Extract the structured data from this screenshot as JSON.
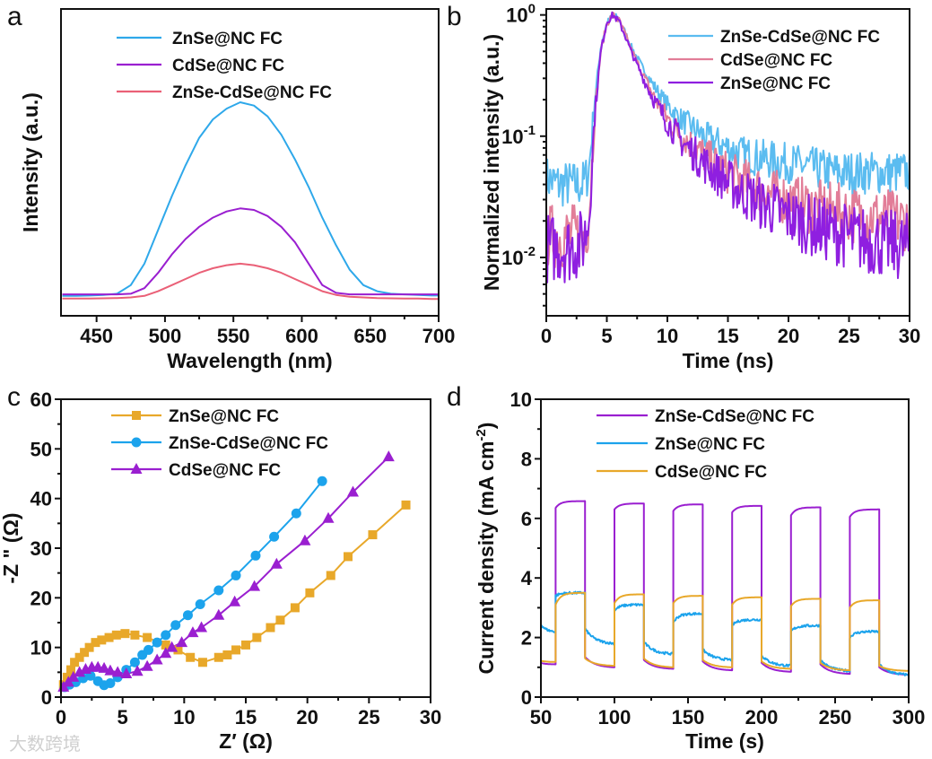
{
  "watermark": "大数跨境",
  "chart_data": [
    {
      "panel": "a",
      "type": "line",
      "xlabel": "Wavelength (nm)",
      "ylabel": "Intensity (a.u.)",
      "xlim": [
        424,
        700
      ],
      "ylim": [
        0,
        1
      ],
      "xticks": [
        450,
        500,
        550,
        600,
        650,
        700
      ],
      "yticks": [],
      "legend": "top-center",
      "x": [
        425,
        435,
        445,
        455,
        465,
        475,
        485,
        495,
        505,
        515,
        525,
        535,
        545,
        555,
        565,
        575,
        585,
        595,
        605,
        615,
        625,
        635,
        645,
        655,
        665,
        675,
        685,
        695,
        700
      ],
      "series": [
        {
          "name": "ZnSe@NC FC",
          "color": "#2ea8ea",
          "values": [
            0.065,
            0.065,
            0.066,
            0.068,
            0.072,
            0.1,
            0.17,
            0.28,
            0.39,
            0.49,
            0.58,
            0.64,
            0.675,
            0.696,
            0.685,
            0.65,
            0.59,
            0.51,
            0.42,
            0.32,
            0.23,
            0.15,
            0.1,
            0.08,
            0.072,
            0.07,
            0.068,
            0.066,
            0.066
          ]
        },
        {
          "name": "CdSe@NC FC",
          "color": "#9a1fd0",
          "values": [
            0.07,
            0.07,
            0.07,
            0.07,
            0.07,
            0.072,
            0.09,
            0.14,
            0.2,
            0.25,
            0.29,
            0.32,
            0.34,
            0.35,
            0.345,
            0.325,
            0.29,
            0.24,
            0.17,
            0.1,
            0.075,
            0.07,
            0.07,
            0.07,
            0.07,
            0.07,
            0.07,
            0.07,
            0.07
          ]
        },
        {
          "name": "ZnSe-CdSe@NC FC",
          "color": "#ea6077",
          "values": [
            0.056,
            0.056,
            0.056,
            0.057,
            0.058,
            0.06,
            0.065,
            0.08,
            0.1,
            0.12,
            0.14,
            0.155,
            0.165,
            0.17,
            0.165,
            0.155,
            0.14,
            0.12,
            0.1,
            0.08,
            0.068,
            0.062,
            0.06,
            0.058,
            0.057,
            0.056,
            0.056,
            0.055,
            0.055
          ]
        }
      ]
    },
    {
      "panel": "b",
      "type": "line",
      "yscale": "log",
      "xlabel": "Time (ns)",
      "ylabel": "Normalized intensity (a.u.)",
      "xlim": [
        0,
        30
      ],
      "ylim": [
        0.0033,
        1.12
      ],
      "xticks": [
        0,
        5,
        10,
        15,
        20,
        25,
        30
      ],
      "yticks": [
        1,
        0.1,
        0.01
      ],
      "legend": "top-right",
      "x": [
        0,
        1,
        2,
        3,
        3.5,
        4,
        4.5,
        5,
        5.5,
        6,
        6.5,
        7,
        8,
        9,
        10,
        11,
        12,
        13,
        14,
        15,
        16,
        18,
        20,
        22,
        24,
        26,
        28,
        30
      ],
      "series": [
        {
          "name": "ZnSe-CdSe@NC FC",
          "color": "#5bbcf0",
          "values": [
            0.045,
            0.04,
            0.04,
            0.04,
            0.05,
            0.2,
            0.55,
            0.85,
            1.0,
            0.92,
            0.72,
            0.55,
            0.36,
            0.25,
            0.18,
            0.14,
            0.12,
            0.1,
            0.09,
            0.08,
            0.072,
            0.065,
            0.06,
            0.055,
            0.05,
            0.05,
            0.05,
            0.05
          ]
        },
        {
          "name": "CdSe@NC FC",
          "color": "#e27d98",
          "values": [
            0.015,
            0.015,
            0.015,
            0.015,
            0.02,
            0.15,
            0.5,
            0.85,
            1.0,
            0.9,
            0.7,
            0.52,
            0.32,
            0.2,
            0.14,
            0.105,
            0.085,
            0.07,
            0.058,
            0.05,
            0.044,
            0.035,
            0.03,
            0.026,
            0.024,
            0.022,
            0.021,
            0.02
          ]
        },
        {
          "name": "ZnSe@NC FC",
          "color": "#8f1fe0",
          "values": [
            0.012,
            0.012,
            0.012,
            0.013,
            0.02,
            0.15,
            0.5,
            0.88,
            1.0,
            0.88,
            0.68,
            0.5,
            0.3,
            0.19,
            0.13,
            0.095,
            0.075,
            0.06,
            0.05,
            0.042,
            0.035,
            0.027,
            0.022,
            0.018,
            0.016,
            0.014,
            0.013,
            0.012
          ]
        }
      ]
    },
    {
      "panel": "c",
      "type": "scatter",
      "xlabel": "Z′ (Ω)",
      "ylabel": "-Z \" (Ω)",
      "xlim": [
        0,
        30
      ],
      "ylim": [
        0,
        60
      ],
      "xticks": [
        0,
        5,
        10,
        15,
        20,
        25,
        30
      ],
      "yticks": [
        0,
        10,
        20,
        30,
        40,
        50,
        60
      ],
      "legend": "top-left",
      "series": [
        {
          "name": "ZnSe@NC FC",
          "color": "#e8a82a",
          "marker": "square",
          "x": [
            0.2,
            0.5,
            0.8,
            1.1,
            1.5,
            1.9,
            2.3,
            2.8,
            3.3,
            3.9,
            4.5,
            5.2,
            6,
            7,
            8.5,
            9.5,
            10.5,
            11.5,
            12.8,
            13.5,
            14.2,
            15,
            15.9,
            17,
            17.8,
            19,
            20.2,
            21.9,
            23.3,
            25.3,
            28.0
          ],
          "y": [
            2.5,
            4,
            5.5,
            7,
            8,
            9,
            10,
            11,
            11.5,
            12,
            12.5,
            12.8,
            12.5,
            12,
            10.5,
            9.5,
            8,
            7,
            8,
            8.5,
            9.5,
            10.5,
            12,
            14,
            15.5,
            18,
            21,
            24.5,
            28.3,
            32.7,
            38.7
          ]
        },
        {
          "name": "ZnSe-CdSe@NC FC",
          "color": "#1ca3ec",
          "marker": "circle",
          "x": [
            0.3,
            0.7,
            1.2,
            1.8,
            2.4,
            3.0,
            3.5,
            4.0,
            4.6,
            5.3,
            6.0,
            6.6,
            7.1,
            7.8,
            8.5,
            9.3,
            10.3,
            11.3,
            12.8,
            14.2,
            15.8,
            17.3,
            19.1,
            21.2
          ],
          "y": [
            2,
            2.5,
            3,
            3.8,
            4.3,
            3.2,
            2.4,
            2.8,
            4,
            5.5,
            7,
            8.5,
            9.5,
            11,
            12.5,
            14.5,
            16.5,
            18.7,
            21.5,
            24.5,
            28.5,
            32.3,
            37,
            43.5
          ]
        },
        {
          "name": "CdSe@NC FC",
          "color": "#9a1fd0",
          "marker": "triangle",
          "x": [
            0.2,
            0.6,
            1.0,
            1.5,
            2.0,
            2.5,
            3.0,
            3.5,
            4.0,
            4.6,
            5.3,
            6.2,
            7.0,
            7.8,
            8.5,
            9.0,
            9.8,
            10.7,
            11.4,
            12.8,
            14.1,
            15.7,
            17.5,
            19.8,
            21.7,
            23.7,
            26.6
          ],
          "y": [
            2,
            3,
            4,
            5,
            5.6,
            6,
            6,
            5.8,
            5.3,
            5,
            4.7,
            5.2,
            6.2,
            7.5,
            8.8,
            10,
            11,
            13,
            14,
            16.5,
            19.2,
            22.3,
            26.8,
            31.5,
            36,
            41.3,
            48.4
          ]
        }
      ]
    },
    {
      "panel": "d",
      "type": "line",
      "xlabel": "Time (s)",
      "ylabel": "Current density (mA cm",
      "ylabel_sup": "-2",
      "ylabel_end": ")",
      "xlim": [
        50,
        300
      ],
      "ylim": [
        0,
        10
      ],
      "xticks": [
        50,
        100,
        150,
        200,
        250,
        300
      ],
      "yticks": [
        0,
        2,
        4,
        6,
        8,
        10
      ],
      "legend": "top-center",
      "light_on_intervals": [
        [
          60,
          80
        ],
        [
          100,
          120
        ],
        [
          140,
          160
        ],
        [
          180,
          200
        ],
        [
          220,
          240
        ],
        [
          260,
          280
        ]
      ],
      "series": [
        {
          "name": "ZnSe-CdSe@NC FC",
          "color": "#9a1fd0",
          "on": [
            [
              6.35,
              6.58
            ],
            [
              6.3,
              6.5
            ],
            [
              6.25,
              6.47
            ],
            [
              6.2,
              6.42
            ],
            [
              6.1,
              6.37
            ],
            [
              6.05,
              6.3
            ]
          ],
          "off": [
            [
              1.15,
              1.1
            ],
            [
              1.35,
              1.0
            ],
            [
              1.25,
              0.95
            ],
            [
              1.2,
              0.9
            ],
            [
              1.15,
              0.85
            ],
            [
              1.1,
              0.78
            ],
            [
              1.0,
              0.75
            ]
          ]
        },
        {
          "name": "ZnSe@NC FC",
          "color": "#1ca3ec",
          "on": [
            [
              3.4,
              3.5
            ],
            [
              2.9,
              3.1
            ],
            [
              2.5,
              2.8
            ],
            [
              2.4,
              2.6
            ],
            [
              2.2,
              2.4
            ],
            [
              2.0,
              2.2
            ]
          ],
          "off": [
            [
              2.45,
              2.2
            ],
            [
              2.3,
              1.8
            ],
            [
              1.85,
              1.45
            ],
            [
              1.6,
              1.25
            ],
            [
              1.4,
              1.05
            ],
            [
              1.25,
              0.88
            ],
            [
              1.1,
              0.75
            ]
          ]
        },
        {
          "name": "CdSe@NC FC",
          "color": "#e8a82a",
          "on": [
            [
              3.1,
              3.5
            ],
            [
              3.15,
              3.45
            ],
            [
              3.15,
              3.4
            ],
            [
              3.1,
              3.35
            ],
            [
              3.05,
              3.3
            ],
            [
              3.0,
              3.25
            ]
          ],
          "off": [
            [
              1.22,
              1.18
            ],
            [
              1.3,
              1.05
            ],
            [
              1.3,
              1.0
            ],
            [
              1.25,
              1.0
            ],
            [
              1.2,
              0.95
            ],
            [
              1.15,
              0.9
            ],
            [
              1.05,
              0.88
            ]
          ]
        }
      ]
    }
  ]
}
